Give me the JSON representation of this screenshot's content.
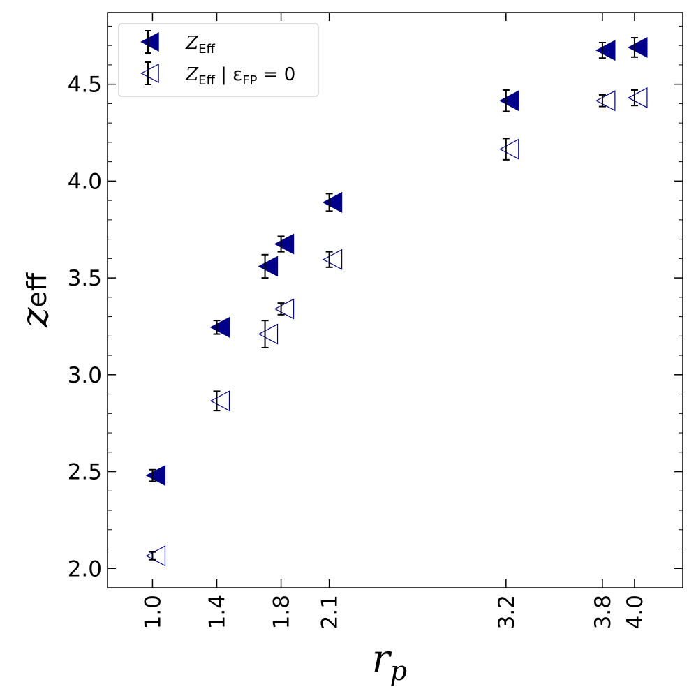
{
  "chart_data": {
    "type": "scatter",
    "title": "",
    "xlabel": "r",
    "xlabel_sub": "p",
    "ylabel": "z",
    "ylabel_sub": "eff",
    "xlim": [
      0.72,
      4.3
    ],
    "ylim": [
      1.9,
      4.87
    ],
    "xticks": [
      1.0,
      1.4,
      1.8,
      2.1,
      3.2,
      3.8,
      4.0
    ],
    "xtick_labels": [
      "1.0",
      "1.4",
      "1.8",
      "2.1",
      "3.2",
      "3.8",
      "4.0"
    ],
    "yticks": [
      2.0,
      2.5,
      3.0,
      3.5,
      4.0,
      4.5
    ],
    "ytick_labels": [
      "2.0",
      "2.5",
      "3.0",
      "3.5",
      "4.0",
      "4.5"
    ],
    "grid": false,
    "legend_position": "top-left",
    "series": [
      {
        "name": "Z_Eff",
        "legend_main": "Z",
        "legend_sub": "Eff",
        "marker": "triangle-left-filled",
        "color": "#00008b",
        "points": [
          {
            "x": 1.0,
            "y": 2.48,
            "err": 0.03
          },
          {
            "x": 1.4,
            "y": 3.245,
            "err": 0.035
          },
          {
            "x": 1.7,
            "y": 3.56,
            "err": 0.06
          },
          {
            "x": 1.8,
            "y": 3.675,
            "err": 0.04
          },
          {
            "x": 2.1,
            "y": 3.89,
            "err": 0.045
          },
          {
            "x": 3.2,
            "y": 4.415,
            "err": 0.055
          },
          {
            "x": 3.8,
            "y": 4.675,
            "err": 0.04
          },
          {
            "x": 4.0,
            "y": 4.69,
            "err": 0.05
          }
        ]
      },
      {
        "name": "Z_Eff | ε_FP = 0",
        "legend_main": "Z",
        "legend_sub": "Eff",
        "legend_rest": " | ε",
        "legend_sub2": "FP",
        "legend_tail": " = 0",
        "marker": "triangle-left-open",
        "color": "#00008b",
        "points": [
          {
            "x": 1.0,
            "y": 2.065,
            "err": 0.02
          },
          {
            "x": 1.4,
            "y": 2.865,
            "err": 0.05
          },
          {
            "x": 1.7,
            "y": 3.21,
            "err": 0.07
          },
          {
            "x": 1.8,
            "y": 3.34,
            "err": 0.03
          },
          {
            "x": 2.1,
            "y": 3.595,
            "err": 0.04
          },
          {
            "x": 3.2,
            "y": 4.165,
            "err": 0.055
          },
          {
            "x": 3.8,
            "y": 4.415,
            "err": 0.03
          },
          {
            "x": 4.0,
            "y": 4.43,
            "err": 0.04
          }
        ]
      }
    ]
  }
}
